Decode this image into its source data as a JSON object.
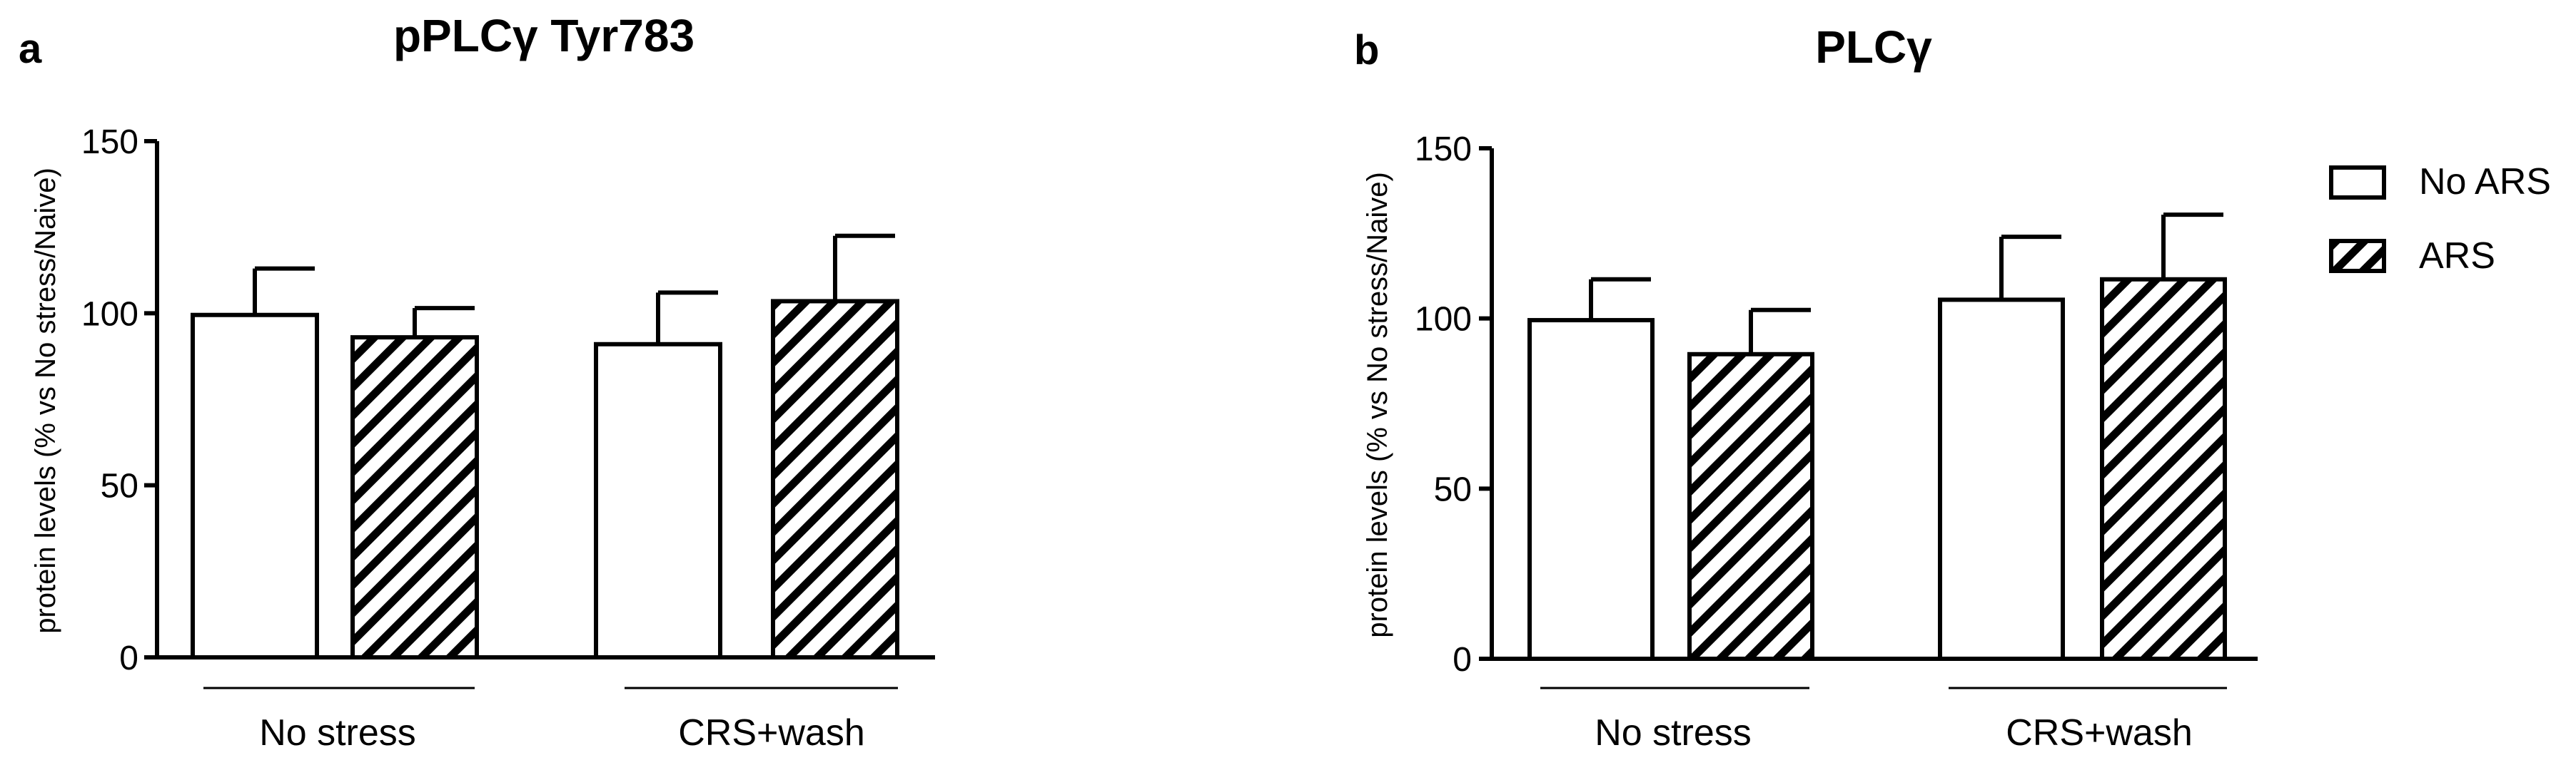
{
  "chart_data": [
    {
      "type": "bar",
      "panel_label": "a",
      "title": "pPLCγ Tyr783",
      "ylabel": "protein levels (% vs No stress/Naive)",
      "xlabel": "",
      "ylim": [
        0,
        150
      ],
      "yticks": [
        0,
        50,
        100,
        150
      ],
      "groups": [
        "No stress",
        "CRS+wash"
      ],
      "series": [
        {
          "name": "No ARS",
          "pattern": "open",
          "values": [
            99.5,
            91
          ],
          "error": [
            13.5,
            15
          ]
        },
        {
          "name": "ARS",
          "pattern": "hatched",
          "values": [
            93,
            103.5
          ],
          "error": [
            8.5,
            19
          ]
        }
      ],
      "grid": false,
      "legend": "none"
    },
    {
      "type": "bar",
      "panel_label": "b",
      "title": "PLCγ",
      "ylabel": "protein levels (% vs No stress/Naive)",
      "xlabel": "",
      "ylim": [
        0,
        150
      ],
      "yticks": [
        0,
        50,
        100,
        150
      ],
      "groups": [
        "No stress",
        "CRS+wash"
      ],
      "series": [
        {
          "name": "No ARS",
          "pattern": "open",
          "values": [
            99.5,
            105.5
          ],
          "error": [
            12,
            18.5
          ]
        },
        {
          "name": "ARS",
          "pattern": "hatched",
          "values": [
            89.5,
            111.5
          ],
          "error": [
            13,
            19
          ]
        }
      ],
      "grid": false,
      "legend": "right"
    }
  ],
  "legend": {
    "items": [
      {
        "label": "No ARS",
        "pattern": "open"
      },
      {
        "label": "ARS",
        "pattern": "hatched"
      }
    ]
  },
  "colors": {
    "ink": "#000000",
    "background": "#ffffff"
  }
}
